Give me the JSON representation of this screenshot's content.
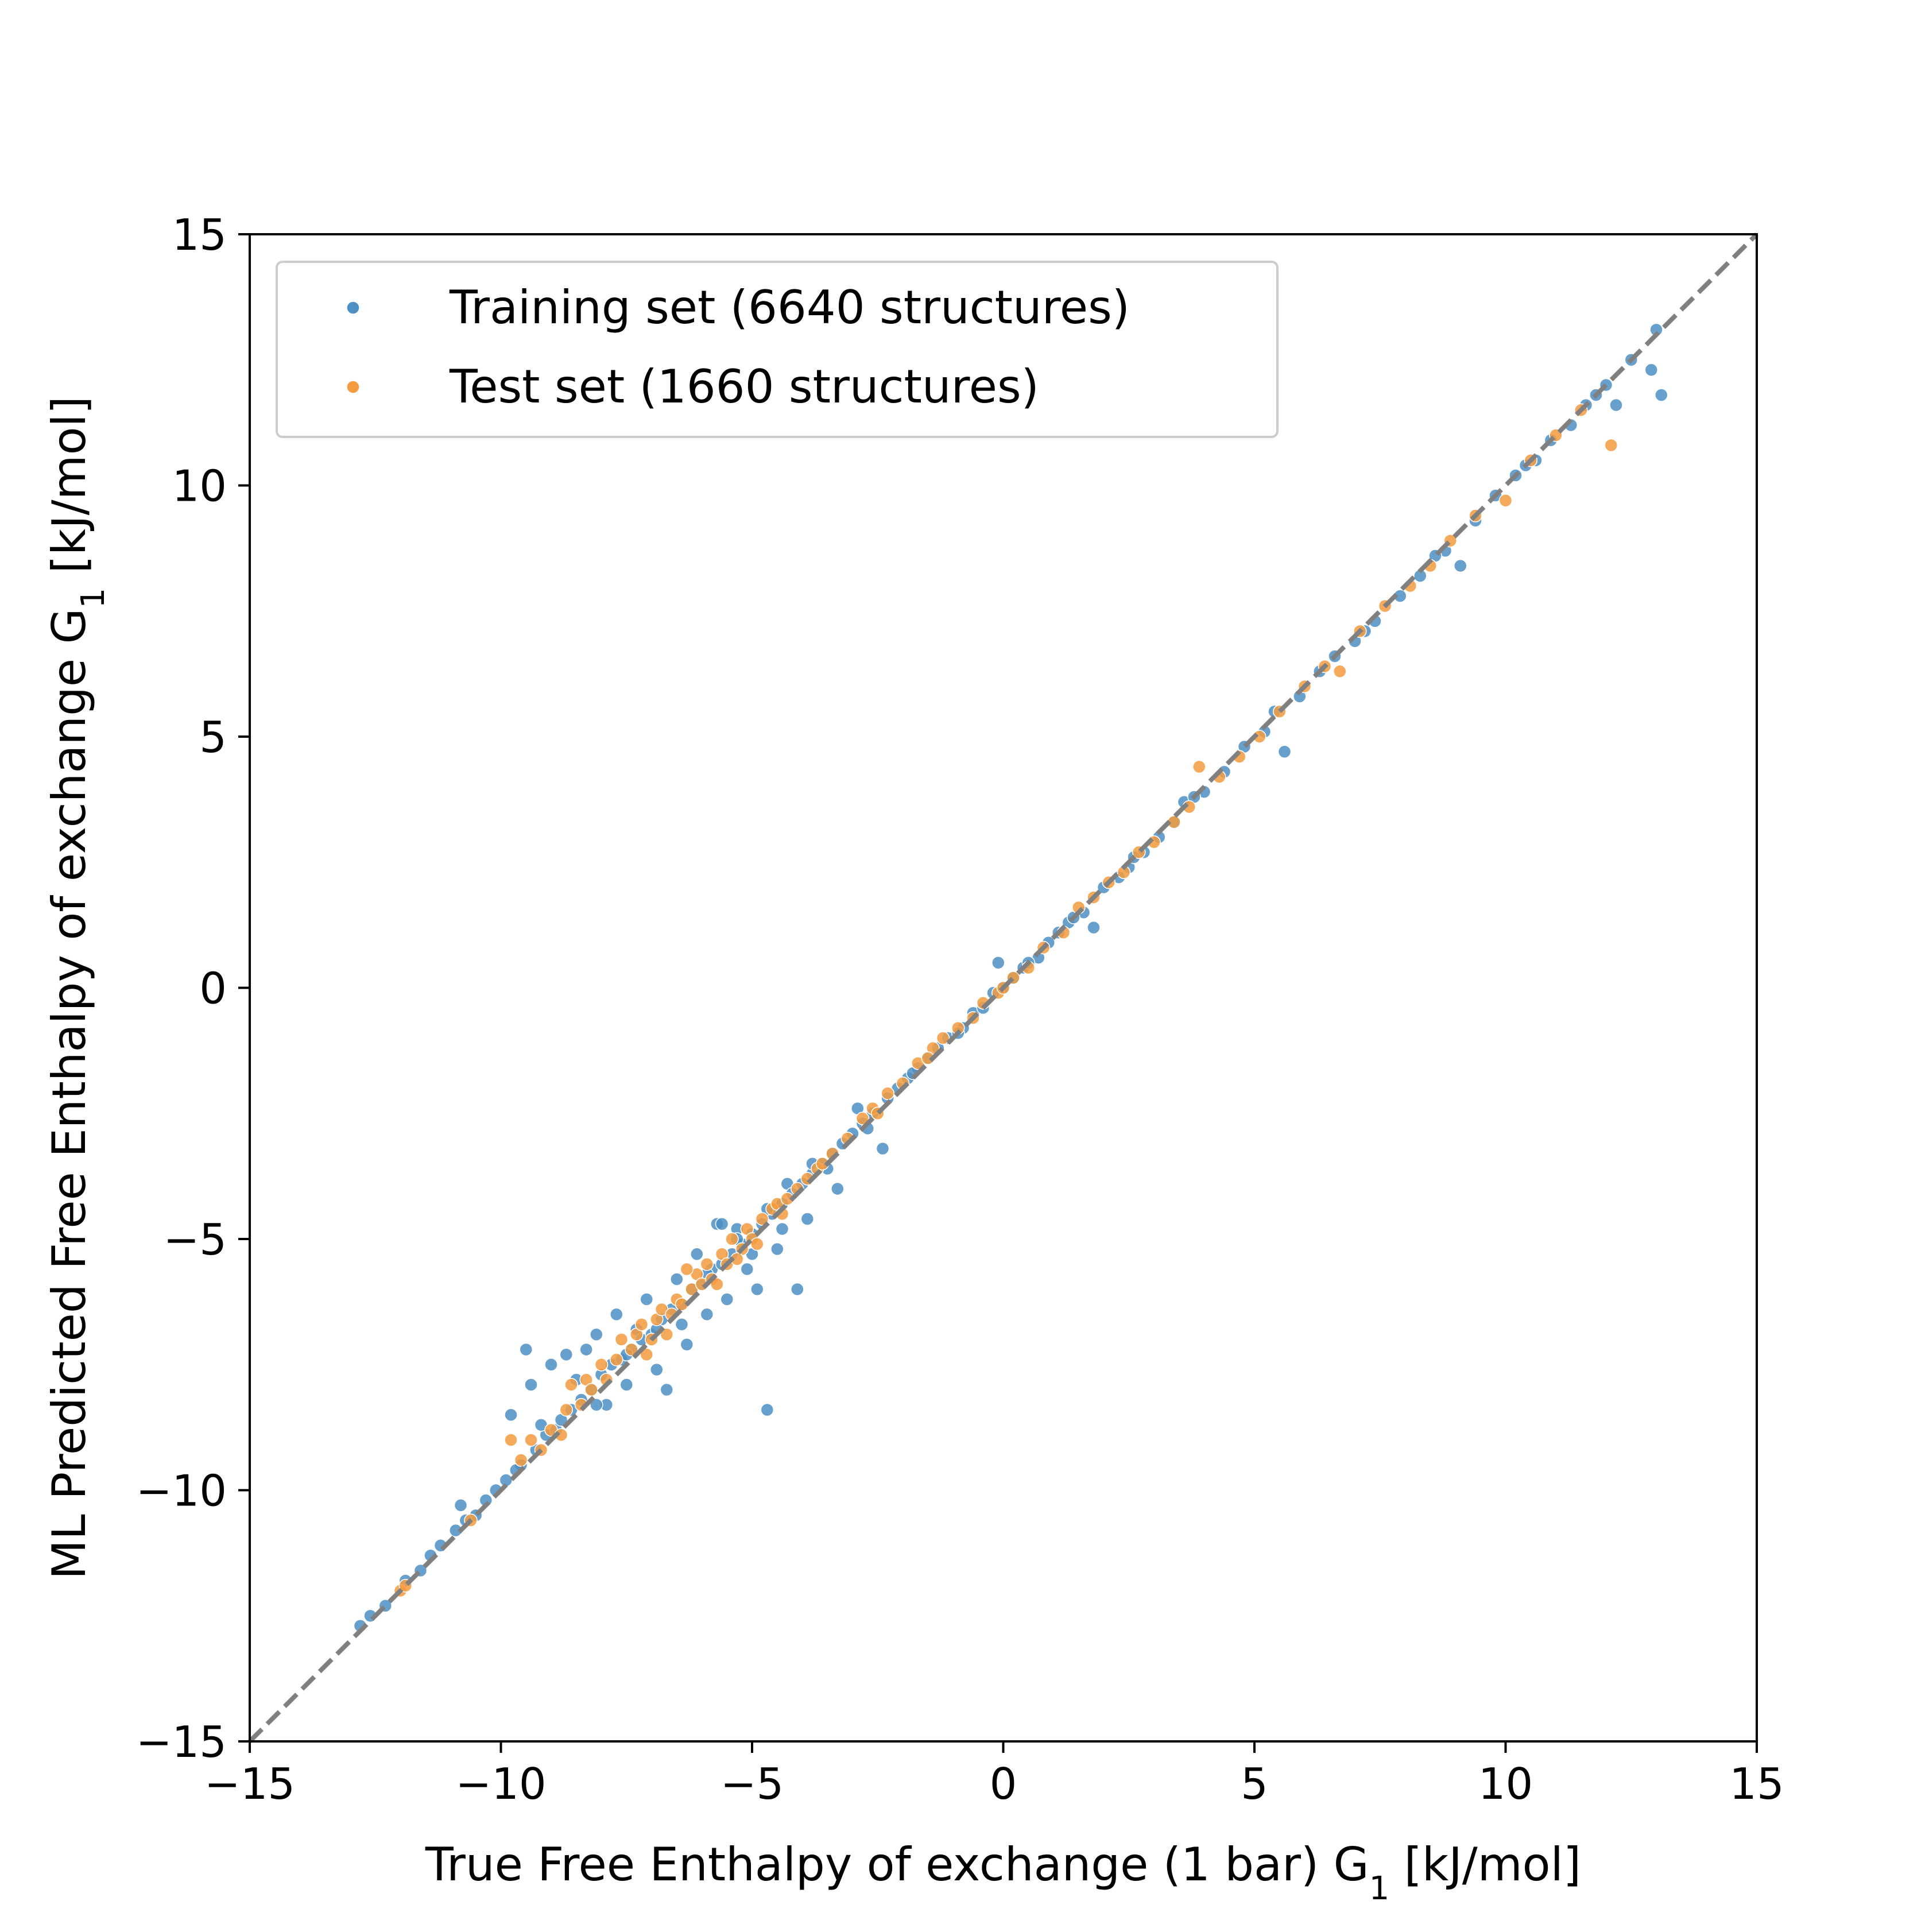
{
  "chart_data": {
    "type": "scatter",
    "title": "",
    "xlabel": "True Free Enthalpy of exchange (1 bar) G",
    "xlabel_sub": "1",
    "xlabel_unit": " [kJ/mol]",
    "ylabel": "ML Predicted Free Enthalpy of exchange G",
    "ylabel_sub": "1",
    "ylabel_unit": " [kJ/mol]",
    "xlim": [
      -15,
      15
    ],
    "ylim": [
      -15,
      15
    ],
    "xticks": [
      -15,
      -10,
      -5,
      0,
      5,
      10,
      15
    ],
    "yticks": [
      -15,
      -10,
      -5,
      0,
      5,
      10,
      15
    ],
    "xtick_labels": [
      "−15",
      "−10",
      "−5",
      "0",
      "5",
      "10",
      "15"
    ],
    "ytick_labels": [
      "−15",
      "−10",
      "−5",
      "0",
      "5",
      "10",
      "15"
    ],
    "grid": false,
    "legend_position": "upper-left",
    "reference_line": {
      "style": "dashed",
      "color": "#808080",
      "from": [
        -15,
        -15
      ],
      "to": [
        15,
        15
      ]
    },
    "series": [
      {
        "name": "Training set (6640 structures)",
        "color": "#4C8FC4",
        "points": [
          [
            -12.8,
            -12.7
          ],
          [
            -12.3,
            -12.3
          ],
          [
            -11.9,
            -11.8
          ],
          [
            -11.6,
            -11.6
          ],
          [
            -11.2,
            -11.1
          ],
          [
            -10.9,
            -10.8
          ],
          [
            -10.8,
            -10.3
          ],
          [
            -10.5,
            -10.5
          ],
          [
            -10.3,
            -10.2
          ],
          [
            -10.1,
            -10.0
          ],
          [
            -9.9,
            -9.8
          ],
          [
            -9.8,
            -8.5
          ],
          [
            -9.6,
            -9.5
          ],
          [
            -9.5,
            -7.2
          ],
          [
            -9.4,
            -7.9
          ],
          [
            -9.3,
            -9.2
          ],
          [
            -9.1,
            -8.9
          ],
          [
            -9.0,
            -7.5
          ],
          [
            -8.9,
            -8.8
          ],
          [
            -8.7,
            -7.3
          ],
          [
            -8.6,
            -8.4
          ],
          [
            -8.5,
            -7.8
          ],
          [
            -8.4,
            -8.2
          ],
          [
            -8.3,
            -7.2
          ],
          [
            -8.2,
            -8.0
          ],
          [
            -8.1,
            -6.9
          ],
          [
            -8.0,
            -7.7
          ],
          [
            -7.9,
            -8.3
          ],
          [
            -7.8,
            -7.5
          ],
          [
            -7.7,
            -6.5
          ],
          [
            -7.6,
            -7.4
          ],
          [
            -7.5,
            -7.9
          ],
          [
            -7.4,
            -7.2
          ],
          [
            -7.3,
            -6.8
          ],
          [
            -7.2,
            -7.0
          ],
          [
            -7.1,
            -6.2
          ],
          [
            -7.0,
            -6.9
          ],
          [
            -6.9,
            -7.6
          ],
          [
            -6.8,
            -6.6
          ],
          [
            -6.7,
            -8.0
          ],
          [
            -6.6,
            -6.4
          ],
          [
            -6.5,
            -5.8
          ],
          [
            -6.4,
            -6.3
          ],
          [
            -6.3,
            -7.1
          ],
          [
            -6.2,
            -6.0
          ],
          [
            -6.1,
            -5.3
          ],
          [
            -6.0,
            -5.9
          ],
          [
            -5.9,
            -6.5
          ],
          [
            -5.8,
            -5.6
          ],
          [
            -5.7,
            -4.7
          ],
          [
            -5.6,
            -5.5
          ],
          [
            -5.5,
            -6.2
          ],
          [
            -5.4,
            -5.3
          ],
          [
            -5.3,
            -4.8
          ],
          [
            -5.2,
            -5.1
          ],
          [
            -5.1,
            -5.6
          ],
          [
            -5.0,
            -4.9
          ],
          [
            -4.9,
            -6.0
          ],
          [
            -4.8,
            -4.7
          ],
          [
            -4.7,
            -8.4
          ],
          [
            -4.6,
            -4.5
          ],
          [
            -4.5,
            -5.2
          ],
          [
            -4.4,
            -4.3
          ],
          [
            -4.3,
            -3.9
          ],
          [
            -4.2,
            -4.1
          ],
          [
            -4.1,
            -6.0
          ],
          [
            -4.0,
            -3.9
          ],
          [
            -3.9,
            -4.6
          ],
          [
            -3.8,
            -3.7
          ],
          [
            -3.6,
            -3.5
          ],
          [
            -3.4,
            -3.3
          ],
          [
            -3.3,
            -4.0
          ],
          [
            -3.2,
            -3.1
          ],
          [
            -3.0,
            -2.9
          ],
          [
            -2.9,
            -2.4
          ],
          [
            -2.8,
            -2.7
          ],
          [
            -2.6,
            -2.5
          ],
          [
            -2.4,
            -3.2
          ],
          [
            -2.3,
            -2.2
          ],
          [
            -2.1,
            -2.0
          ],
          [
            -1.9,
            -1.8
          ],
          [
            -1.7,
            -1.6
          ],
          [
            -1.5,
            -1.4
          ],
          [
            -1.3,
            -1.2
          ],
          [
            -1.1,
            -1.0
          ],
          [
            -0.8,
            -0.8
          ],
          [
            -0.6,
            -0.5
          ],
          [
            -0.4,
            -0.4
          ],
          [
            -0.2,
            -0.1
          ],
          [
            0.0,
            0.0
          ],
          [
            -0.1,
            0.5
          ],
          [
            0.2,
            0.2
          ],
          [
            0.4,
            0.4
          ],
          [
            0.7,
            0.6
          ],
          [
            0.9,
            0.9
          ],
          [
            1.1,
            1.1
          ],
          [
            1.3,
            1.3
          ],
          [
            1.6,
            1.5
          ],
          [
            1.8,
            1.2
          ],
          [
            2.0,
            2.0
          ],
          [
            2.3,
            2.2
          ],
          [
            2.5,
            2.4
          ],
          [
            2.8,
            2.7
          ],
          [
            3.1,
            3.0
          ],
          [
            3.4,
            3.3
          ],
          [
            3.6,
            3.7
          ],
          [
            4.0,
            3.9
          ],
          [
            4.4,
            4.3
          ],
          [
            4.8,
            4.8
          ],
          [
            5.2,
            5.1
          ],
          [
            5.6,
            4.7
          ],
          [
            5.9,
            5.8
          ],
          [
            6.3,
            6.3
          ],
          [
            6.6,
            6.6
          ],
          [
            7.0,
            6.9
          ],
          [
            7.4,
            7.3
          ],
          [
            7.9,
            7.8
          ],
          [
            8.3,
            8.2
          ],
          [
            8.8,
            8.7
          ],
          [
            9.1,
            8.4
          ],
          [
            9.4,
            9.3
          ],
          [
            9.8,
            9.8
          ],
          [
            10.2,
            10.2
          ],
          [
            10.6,
            10.5
          ],
          [
            10.9,
            10.9
          ],
          [
            11.3,
            11.2
          ],
          [
            11.6,
            11.6
          ],
          [
            12.0,
            12.0
          ],
          [
            12.2,
            11.6
          ],
          [
            12.5,
            12.5
          ],
          [
            12.9,
            12.3
          ],
          [
            13.0,
            13.1
          ],
          [
            13.1,
            11.8
          ],
          [
            -12.6,
            -12.5
          ],
          [
            -11.4,
            -11.3
          ],
          [
            -10.7,
            -10.6
          ],
          [
            -9.7,
            -9.6
          ],
          [
            -9.2,
            -8.7
          ],
          [
            -8.8,
            -8.6
          ],
          [
            -8.1,
            -8.3
          ],
          [
            -7.5,
            -7.3
          ],
          [
            -6.9,
            -6.8
          ],
          [
            -6.4,
            -6.7
          ],
          [
            -5.9,
            -5.7
          ],
          [
            -5.6,
            -4.7
          ],
          [
            -5.3,
            -5.0
          ],
          [
            -5.0,
            -5.3
          ],
          [
            -4.7,
            -4.4
          ],
          [
            -4.4,
            -4.8
          ],
          [
            -3.8,
            -3.5
          ],
          [
            -3.5,
            -3.6
          ],
          [
            -2.7,
            -2.8
          ],
          [
            -1.8,
            -1.7
          ],
          [
            -0.9,
            -0.9
          ],
          [
            0.5,
            0.5
          ],
          [
            1.4,
            1.4
          ],
          [
            2.6,
            2.6
          ],
          [
            3.8,
            3.8
          ],
          [
            5.4,
            5.5
          ],
          [
            7.2,
            7.1
          ],
          [
            8.6,
            8.6
          ],
          [
            10.4,
            10.4
          ],
          [
            11.8,
            11.8
          ]
        ]
      },
      {
        "name": "Test set (1660 structures)",
        "color": "#F39B3E",
        "points": [
          [
            -12.0,
            -12.0
          ],
          [
            -11.9,
            -11.9
          ],
          [
            -10.6,
            -10.6
          ],
          [
            -9.8,
            -9.0
          ],
          [
            -9.6,
            -9.4
          ],
          [
            -9.4,
            -9.0
          ],
          [
            -9.2,
            -9.2
          ],
          [
            -9.0,
            -8.8
          ],
          [
            -8.8,
            -8.9
          ],
          [
            -8.7,
            -8.4
          ],
          [
            -8.6,
            -7.9
          ],
          [
            -8.4,
            -8.3
          ],
          [
            -8.3,
            -7.8
          ],
          [
            -8.2,
            -8.0
          ],
          [
            -8.0,
            -7.5
          ],
          [
            -7.9,
            -7.8
          ],
          [
            -7.7,
            -7.4
          ],
          [
            -7.6,
            -7.0
          ],
          [
            -7.4,
            -7.2
          ],
          [
            -7.3,
            -6.9
          ],
          [
            -7.2,
            -6.7
          ],
          [
            -7.0,
            -7.0
          ],
          [
            -6.9,
            -6.6
          ],
          [
            -6.8,
            -6.4
          ],
          [
            -6.6,
            -6.5
          ],
          [
            -6.5,
            -6.2
          ],
          [
            -6.4,
            -6.3
          ],
          [
            -6.2,
            -6.0
          ],
          [
            -6.1,
            -5.7
          ],
          [
            -6.0,
            -5.9
          ],
          [
            -5.9,
            -5.5
          ],
          [
            -5.8,
            -5.8
          ],
          [
            -5.6,
            -5.3
          ],
          [
            -5.5,
            -5.5
          ],
          [
            -5.4,
            -5.0
          ],
          [
            -5.2,
            -5.2
          ],
          [
            -5.1,
            -4.8
          ],
          [
            -5.0,
            -5.0
          ],
          [
            -4.8,
            -4.6
          ],
          [
            -4.6,
            -4.4
          ],
          [
            -4.5,
            -4.3
          ],
          [
            -4.3,
            -4.2
          ],
          [
            -4.1,
            -4.0
          ],
          [
            -3.9,
            -3.8
          ],
          [
            -3.7,
            -3.6
          ],
          [
            -3.4,
            -3.3
          ],
          [
            -3.1,
            -3.0
          ],
          [
            -2.8,
            -2.6
          ],
          [
            -2.6,
            -2.4
          ],
          [
            -2.3,
            -2.1
          ],
          [
            -2.0,
            -1.9
          ],
          [
            -1.7,
            -1.5
          ],
          [
            -1.4,
            -1.2
          ],
          [
            -1.2,
            -1.0
          ],
          [
            -0.9,
            -0.8
          ],
          [
            -0.6,
            -0.6
          ],
          [
            -0.4,
            -0.3
          ],
          [
            -0.1,
            -0.1
          ],
          [
            0.2,
            0.2
          ],
          [
            0.5,
            0.4
          ],
          [
            0.8,
            0.8
          ],
          [
            1.2,
            1.1
          ],
          [
            1.5,
            1.6
          ],
          [
            1.8,
            1.8
          ],
          [
            2.1,
            2.1
          ],
          [
            2.4,
            2.3
          ],
          [
            2.7,
            2.7
          ],
          [
            3.0,
            2.9
          ],
          [
            3.4,
            3.3
          ],
          [
            3.7,
            3.6
          ],
          [
            3.9,
            4.4
          ],
          [
            4.3,
            4.2
          ],
          [
            4.7,
            4.6
          ],
          [
            5.1,
            5.0
          ],
          [
            5.5,
            5.5
          ],
          [
            6.0,
            6.0
          ],
          [
            6.4,
            6.4
          ],
          [
            6.7,
            6.3
          ],
          [
            7.1,
            7.1
          ],
          [
            7.6,
            7.6
          ],
          [
            8.1,
            8.0
          ],
          [
            8.5,
            8.4
          ],
          [
            8.9,
            8.9
          ],
          [
            9.4,
            9.4
          ],
          [
            10.0,
            9.7
          ],
          [
            10.5,
            10.5
          ],
          [
            11.0,
            11.0
          ],
          [
            11.5,
            11.5
          ],
          [
            12.1,
            10.8
          ],
          [
            -7.1,
            -7.3
          ],
          [
            -6.7,
            -6.9
          ],
          [
            -6.3,
            -5.6
          ],
          [
            -5.7,
            -5.9
          ],
          [
            -5.3,
            -5.4
          ],
          [
            -4.9,
            -5.1
          ],
          [
            -4.4,
            -4.5
          ],
          [
            -3.6,
            -3.5
          ],
          [
            -2.5,
            -2.5
          ],
          [
            -1.5,
            -1.4
          ],
          [
            0.0,
            0.0
          ]
        ]
      }
    ]
  }
}
